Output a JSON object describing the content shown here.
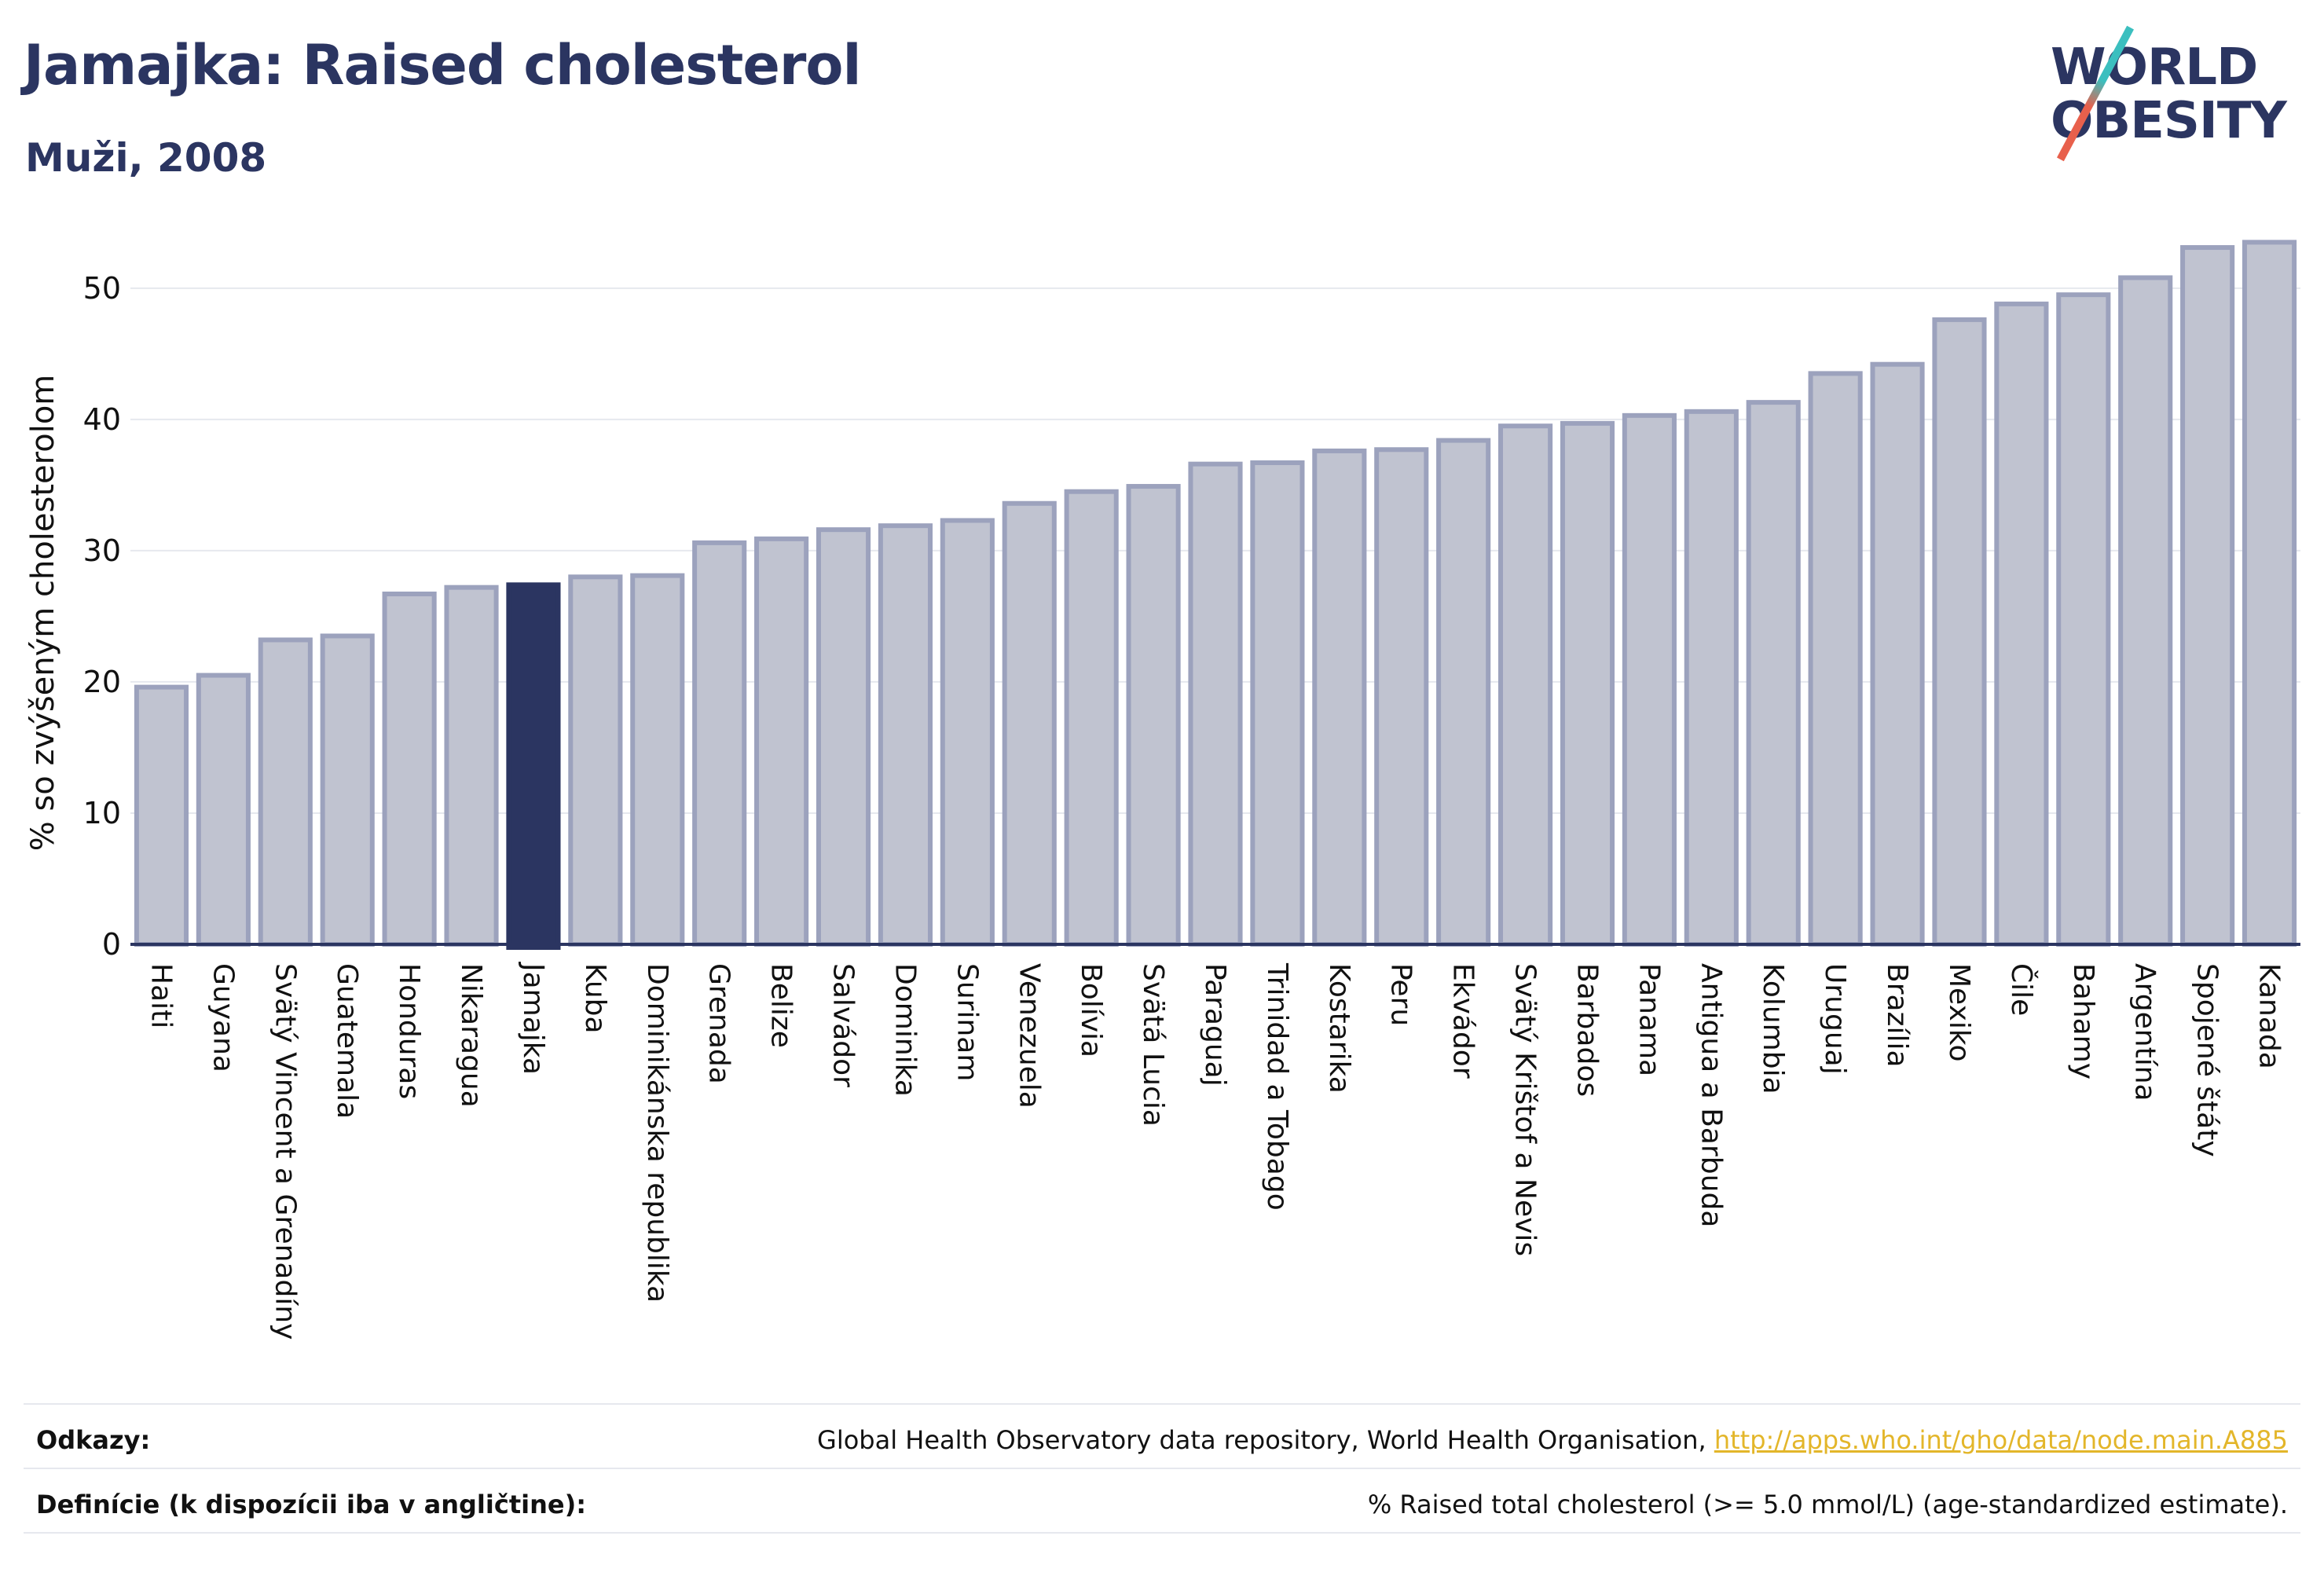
{
  "header": {
    "title": "Jamajka: Raised cholesterol",
    "subtitle": "Muži, 2008"
  },
  "logo": {
    "line1": "WORLD",
    "line2": "OBESITY"
  },
  "colors": {
    "bar_default": "#c0c3d0",
    "bar_border": "#9ca2bd",
    "bar_highlight": "#2b3561",
    "grid": "#e6e8ee",
    "axis": "#2b3561"
  },
  "chart_data": {
    "type": "bar",
    "ylabel": "% so zvýšeným cholesterolom",
    "ylim": [
      0,
      54
    ],
    "yticks": [
      0,
      10,
      20,
      30,
      40,
      50
    ],
    "highlight": "Jamajka",
    "categories": [
      "Haiti",
      "Guyana",
      "Svätý Vincent a Grenadíny",
      "Guatemala",
      "Honduras",
      "Nikaragua",
      "Jamajka",
      "Kuba",
      "Dominikánska republika",
      "Grenada",
      "Belize",
      "Salvádor",
      "Dominika",
      "Surinam",
      "Venezuela",
      "Bolívia",
      "Svätá Lucia",
      "Paraguaj",
      "Trinidad a Tobago",
      "Kostarika",
      "Peru",
      "Ekvádor",
      "Svätý Krištof a Nevis",
      "Barbados",
      "Panama",
      "Antigua a Barbuda",
      "Kolumbia",
      "Uruguaj",
      "Brazília",
      "Mexiko",
      "Čile",
      "Bahamy",
      "Argentína",
      "Spojené štáty",
      "Kanada"
    ],
    "values": [
      19.6,
      20.5,
      23.2,
      23.5,
      26.7,
      27.2,
      27.4,
      28.0,
      28.1,
      30.6,
      30.9,
      31.6,
      31.9,
      32.3,
      33.6,
      34.5,
      34.9,
      36.6,
      36.7,
      37.6,
      37.7,
      38.4,
      39.5,
      39.7,
      40.3,
      40.6,
      41.3,
      43.5,
      44.2,
      47.6,
      48.8,
      49.5,
      50.8,
      53.1,
      53.5
    ],
    "grid": true
  },
  "footer": {
    "refs_label": "Odkazy:",
    "refs_text": "Global Health Observatory data repository, World Health Organisation, ",
    "refs_link": "http://apps.who.int/gho/data/node.main.A885",
    "defs_label": "Definície (k dispozícii iba v angličtine):",
    "defs_text": "% Raised total cholesterol (>= 5.0 mmol/L) (age-standardized estimate)."
  }
}
